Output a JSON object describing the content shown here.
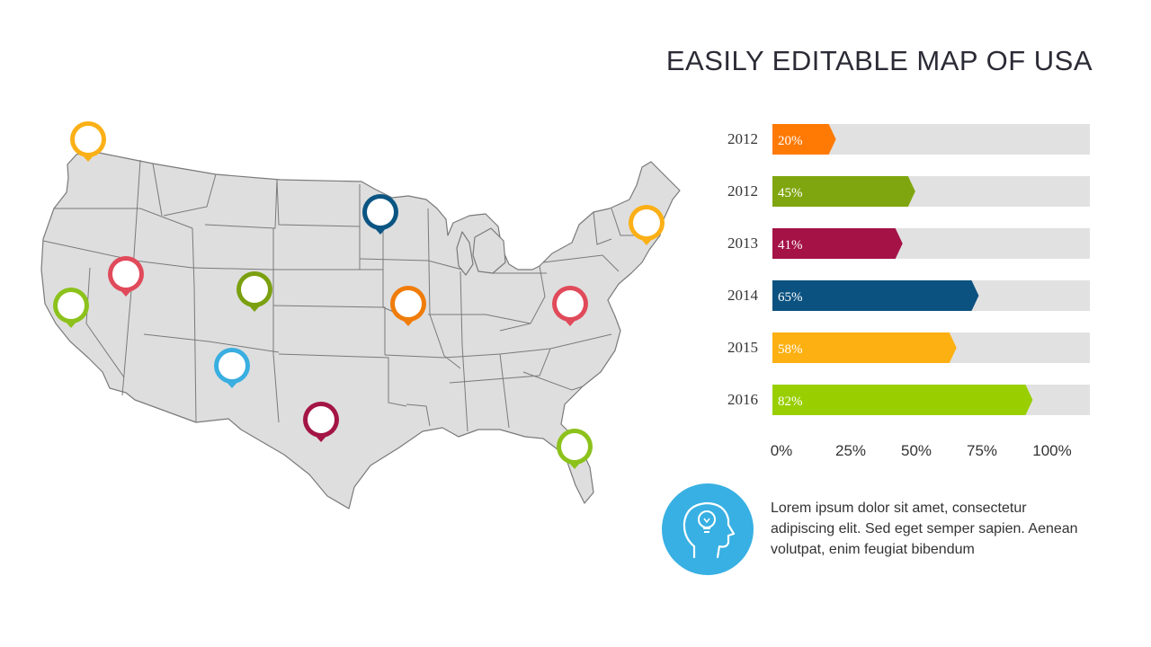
{
  "slide": {
    "title": "EASILY EDITABLE MAP OF USA"
  },
  "colors": {
    "track": "#e1e1e1",
    "map_fill": "#dedede",
    "map_stroke": "#7a7a7a",
    "icon_circle": "#38b0e3"
  },
  "map": {
    "pins": [
      {
        "name": "washington",
        "color": "#fbb017"
      },
      {
        "name": "california",
        "color": "#8cc21b"
      },
      {
        "name": "nevada",
        "color": "#e04a5a"
      },
      {
        "name": "colorado",
        "color": "#7aa00f"
      },
      {
        "name": "new-mexico",
        "color": "#3aaee0"
      },
      {
        "name": "texas",
        "color": "#a31545"
      },
      {
        "name": "minnesota",
        "color": "#0b5583"
      },
      {
        "name": "missouri",
        "color": "#f07c0a"
      },
      {
        "name": "west-virginia",
        "color": "#e04a5a"
      },
      {
        "name": "massachusetts",
        "color": "#fbb017"
      },
      {
        "name": "florida",
        "color": "#8cc21b"
      }
    ]
  },
  "chart_data": {
    "type": "bar",
    "orientation": "horizontal",
    "categories": [
      "2012",
      "2012",
      "2013",
      "2014",
      "2015",
      "2016"
    ],
    "values": [
      20,
      45,
      41,
      65,
      58,
      82
    ],
    "value_labels": [
      "20%",
      "45%",
      "41%",
      "65%",
      "58%",
      "82%"
    ],
    "bar_colors": [
      "#fe7a05",
      "#80a60f",
      "#a41246",
      "#0b5280",
      "#fdb012",
      "#99cf00"
    ],
    "xlim": [
      0,
      100
    ],
    "x_ticks": [
      "0%",
      "25%",
      "50%",
      "75%",
      "100%"
    ]
  },
  "info": {
    "text": "Lorem ipsum dolor sit amet, consectetur adipiscing elit. Sed eget semper sapien. Aenean volutpat, enim feugiat bibendum"
  }
}
